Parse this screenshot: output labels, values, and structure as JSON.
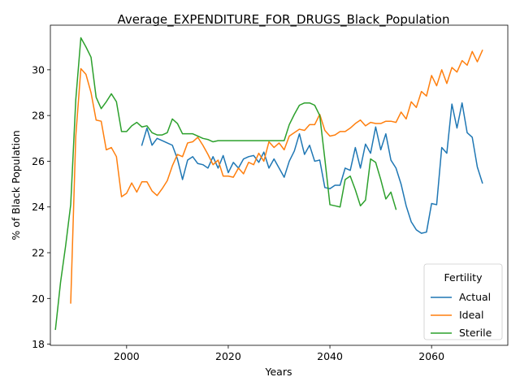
{
  "chart_data": {
    "type": "line",
    "title": "Average_EXPENDITURE_FOR_DRUGS_Black_Population",
    "xlabel": "Years",
    "ylabel": "% of Black Population",
    "xlim": [
      1985,
      2075
    ],
    "ylim": [
      17.95,
      31.95
    ],
    "xticks": [
      2000,
      2020,
      2040,
      2060
    ],
    "yticks": [
      18,
      20,
      22,
      24,
      26,
      28,
      30
    ],
    "grid": false,
    "legend": {
      "title": "Fertility",
      "position": "lower-right"
    },
    "series": [
      {
        "name": "Actual",
        "color": "#1f77b4",
        "x": [
          2003,
          2004,
          2005,
          2006,
          2007,
          2008,
          2009,
          2010,
          2011,
          2012,
          2013,
          2014,
          2015,
          2016,
          2017,
          2018,
          2019,
          2020,
          2021,
          2022,
          2023,
          2024,
          2025,
          2026,
          2027,
          2028,
          2029,
          2030,
          2031,
          2032,
          2033,
          2034,
          2035,
          2036,
          2037,
          2038,
          2039,
          2040,
          2041,
          2042,
          2043,
          2044,
          2045,
          2046,
          2047,
          2048,
          2049,
          2050,
          2051,
          2052,
          2053,
          2054,
          2055,
          2056,
          2057,
          2058,
          2059,
          2060,
          2061,
          2062,
          2063,
          2064,
          2065,
          2066,
          2067,
          2068,
          2069,
          2070
        ],
        "y": [
          26.7,
          27.45,
          26.7,
          27.0,
          26.9,
          26.8,
          26.7,
          26.1,
          25.2,
          26.05,
          26.2,
          25.9,
          25.85,
          25.7,
          26.2,
          25.7,
          26.25,
          25.5,
          25.95,
          25.7,
          26.1,
          26.2,
          26.25,
          25.95,
          26.4,
          25.7,
          26.1,
          25.7,
          25.3,
          26.0,
          26.45,
          27.2,
          26.3,
          26.7,
          26.0,
          26.05,
          24.85,
          24.8,
          24.95,
          24.95,
          25.7,
          25.6,
          26.6,
          25.7,
          26.75,
          26.35,
          27.5,
          26.5,
          27.2,
          26.05,
          25.7,
          25.0,
          24.05,
          23.35,
          23.0,
          22.85,
          22.9,
          24.15,
          24.1,
          26.6,
          26.35,
          28.5,
          27.45,
          28.55,
          27.25,
          27.05,
          25.75,
          25.05
        ]
      },
      {
        "name": "Ideal",
        "color": "#ff7f0e",
        "x": [
          1989,
          1990,
          1991,
          1992,
          1993,
          1994,
          1995,
          1996,
          1997,
          1998,
          1999,
          2000,
          2001,
          2002,
          2003,
          2004,
          2005,
          2006,
          2007,
          2008,
          2009,
          2010,
          2011,
          2012,
          2013,
          2014,
          2015,
          2016,
          2017,
          2018,
          2019,
          2020,
          2021,
          2022,
          2023,
          2024,
          2025,
          2026,
          2027,
          2028,
          2029,
          2030,
          2031,
          2032,
          2033,
          2034,
          2035,
          2036,
          2037,
          2038,
          2039,
          2040,
          2041,
          2042,
          2043,
          2044,
          2045,
          2046,
          2047,
          2048,
          2049,
          2050,
          2051,
          2052,
          2053,
          2054,
          2055,
          2056,
          2057,
          2058,
          2059,
          2060,
          2061,
          2062,
          2063,
          2064,
          2065,
          2066,
          2067,
          2068,
          2069,
          2070
        ],
        "y": [
          19.8,
          27.1,
          30.05,
          29.8,
          29.0,
          27.8,
          27.75,
          26.5,
          26.6,
          26.2,
          24.45,
          24.6,
          25.05,
          24.65,
          25.1,
          25.1,
          24.7,
          24.5,
          24.8,
          25.15,
          25.8,
          26.3,
          26.2,
          26.8,
          26.85,
          27.05,
          26.7,
          26.3,
          25.85,
          26.05,
          25.35,
          25.35,
          25.3,
          25.7,
          25.45,
          25.95,
          25.85,
          26.35,
          26.0,
          26.85,
          26.6,
          26.8,
          26.5,
          27.1,
          27.25,
          27.4,
          27.35,
          27.6,
          27.6,
          28.05,
          27.35,
          27.1,
          27.15,
          27.3,
          27.3,
          27.45,
          27.65,
          27.8,
          27.55,
          27.7,
          27.65,
          27.65,
          27.75,
          27.75,
          27.7,
          28.15,
          27.85,
          28.6,
          28.35,
          29.05,
          28.85,
          29.75,
          29.3,
          30.0,
          29.4,
          30.1,
          29.9,
          30.4,
          30.2,
          30.8,
          30.35,
          30.85
        ]
      },
      {
        "name": "Sterile",
        "color": "#2ca02c",
        "x": [
          1986,
          1987,
          1988,
          1989,
          1990,
          1991,
          1992,
          1993,
          1994,
          1995,
          1996,
          1997,
          1998,
          1999,
          2000,
          2001,
          2002,
          2003,
          2004,
          2005,
          2006,
          2007,
          2008,
          2009,
          2010,
          2011,
          2012,
          2013,
          2014,
          2015,
          2016,
          2017,
          2018,
          2019,
          2020,
          2021,
          2022,
          2023,
          2024,
          2025,
          2026,
          2027,
          2028,
          2029,
          2030,
          2031,
          2032,
          2033,
          2034,
          2035,
          2036,
          2037,
          2038,
          2039,
          2040,
          2041,
          2042,
          2043,
          2044,
          2045,
          2046,
          2047,
          2048,
          2049,
          2050,
          2051,
          2052,
          2053
        ],
        "y": [
          18.65,
          20.7,
          22.3,
          24.1,
          28.7,
          31.4,
          31.0,
          30.55,
          28.8,
          28.3,
          28.6,
          28.95,
          28.6,
          27.3,
          27.3,
          27.55,
          27.7,
          27.5,
          27.55,
          27.25,
          27.15,
          27.15,
          27.25,
          27.85,
          27.65,
          27.2,
          27.2,
          27.2,
          27.1,
          27.0,
          26.95,
          26.85,
          26.9,
          26.9,
          26.9,
          26.9,
          26.9,
          26.9,
          26.9,
          26.9,
          26.9,
          26.9,
          26.9,
          26.9,
          26.9,
          26.9,
          27.6,
          28.05,
          28.45,
          28.55,
          28.55,
          28.45,
          28.0,
          26.1,
          24.1,
          24.05,
          24.0,
          25.2,
          25.35,
          24.75,
          24.05,
          24.3,
          26.1,
          25.95,
          25.2,
          24.35,
          24.65,
          23.9
        ]
      }
    ]
  }
}
